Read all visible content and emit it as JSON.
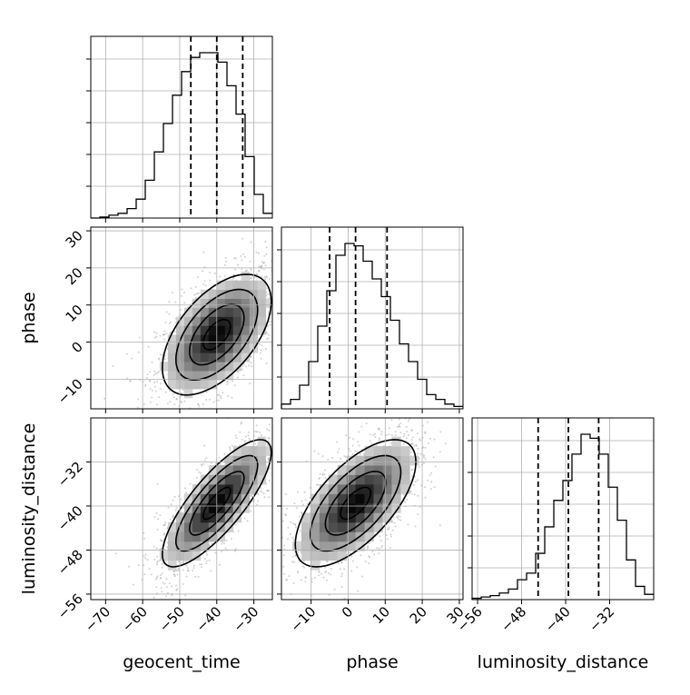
{
  "chart_data": {
    "type": "corner",
    "parameters": [
      "geocent_time",
      "phase",
      "luminosity_distance"
    ],
    "axis_labels": {
      "x": [
        "geocent_time",
        "phase",
        "luminosity_distance"
      ],
      "y": [
        "phase",
        "luminosity_distance"
      ]
    },
    "ranges": {
      "geocent_time": [
        -74,
        -25
      ],
      "phase": [
        -18,
        31
      ],
      "luminosity_distance": [
        -57,
        -24
      ]
    },
    "ticks": {
      "geocent_time": [
        -70,
        -60,
        -50,
        -40,
        -30
      ],
      "phase": [
        -10,
        0,
        10,
        20,
        30
      ],
      "luminosity_distance": [
        -56,
        -48,
        -40,
        -32
      ]
    },
    "tick_labels": {
      "geocent_time": [
        "−70",
        "−60",
        "−50",
        "−40",
        "−30"
      ],
      "phase_x": [
        "−10",
        "0",
        "10",
        "20",
        "30"
      ],
      "phase_y": [
        "−10",
        "0",
        "10",
        "20",
        "30"
      ],
      "luminosity_distance_x": [
        "−56",
        "−48",
        "−40",
        "−32"
      ],
      "luminosity_distance_y": [
        "−56",
        "−48",
        "−40",
        "−32"
      ]
    },
    "quantiles": {
      "geocent_time": [
        -47,
        -40,
        -33
      ],
      "phase": [
        -5,
        2,
        10.5
      ],
      "luminosity_distance": [
        -45,
        -39.5,
        -34
      ]
    },
    "histograms": {
      "geocent_time": {
        "start": -74,
        "step": 2.45,
        "counts": [
          0,
          1,
          3,
          5,
          10,
          20,
          40,
          70,
          100,
          130,
          155,
          170,
          175,
          175,
          165,
          140,
          110,
          65,
          25,
          5
        ]
      },
      "phase": {
        "start": -18,
        "step": 2.45,
        "counts": [
          4,
          8,
          20,
          40,
          70,
          100,
          130,
          140,
          138,
          125,
          110,
          95,
          75,
          55,
          40,
          25,
          12,
          8,
          4,
          2
        ]
      },
      "luminosity_distance": {
        "start": -57,
        "step": 1.65,
        "counts": [
          1,
          2,
          3,
          5,
          8,
          15,
          20,
          35,
          55,
          75,
          90,
          110,
          125,
          122,
          110,
          85,
          60,
          30,
          10,
          4
        ]
      }
    },
    "correlations": {
      "geocent_time|phase": 0.55,
      "geocent_time|luminosity_distance": 0.8,
      "phase|luminosity_distance": 0.65
    },
    "grid": true
  }
}
